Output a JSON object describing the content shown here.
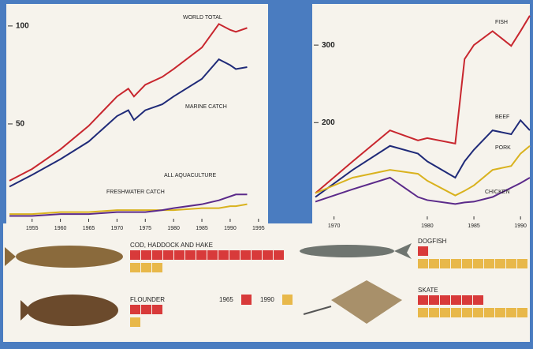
{
  "chart_data": [
    {
      "type": "line",
      "x": [
        1951,
        1955,
        1960,
        1965,
        1970,
        1972,
        1973,
        1975,
        1978,
        1980,
        1985,
        1988,
        1990,
        1991,
        1993
      ],
      "series": [
        {
          "name": "WORLD TOTAL",
          "color": "#c8262e",
          "values": [
            21,
            27,
            37,
            49,
            64,
            68,
            64,
            70,
            74,
            78,
            89,
            101,
            98,
            97,
            99
          ]
        },
        {
          "name": "MARINE CATCH",
          "color": "#1f2a78",
          "values": [
            18,
            24,
            32,
            41,
            54,
            57,
            52,
            57,
            60,
            64,
            73,
            83,
            80,
            78,
            79
          ]
        },
        {
          "name": "ALL AQUACULTURE",
          "color": "#d9b21e",
          "values": [
            4,
            4,
            5,
            5,
            6,
            6,
            6,
            6,
            6,
            6,
            7,
            7,
            8,
            8,
            9
          ]
        },
        {
          "name": "FRESHWATER CATCH",
          "color": "#5b2a8a",
          "values": [
            3,
            3,
            4,
            4,
            5,
            5,
            5,
            5,
            6,
            7,
            9,
            11,
            13,
            14,
            14
          ]
        }
      ],
      "xlim": [
        1951,
        1996
      ],
      "xticks": [
        1955,
        1960,
        1965,
        1970,
        1975,
        1980,
        1985,
        1990,
        1995
      ],
      "ylim": [
        0,
        106
      ],
      "yticks": [
        50,
        100
      ]
    },
    {
      "type": "line",
      "x": [
        1968,
        1972,
        1976,
        1979,
        1980,
        1983,
        1984,
        1985,
        1987,
        1989,
        1990,
        1991
      ],
      "series": [
        {
          "name": "FISH",
          "color": "#c8262e",
          "values": [
            109,
            150,
            190,
            177,
            180,
            173,
            282,
            300,
            318,
            299,
            318,
            338
          ]
        },
        {
          "name": "BEEF",
          "color": "#1f2a78",
          "values": [
            104,
            139,
            170,
            160,
            150,
            129,
            150,
            165,
            190,
            185,
            203,
            190
          ]
        },
        {
          "name": "PORK",
          "color": "#d9b21e",
          "values": [
            109,
            129,
            139,
            134,
            125,
            106,
            112,
            119,
            139,
            144,
            160,
            170
          ]
        },
        {
          "name": "CHICKEN",
          "color": "#5b2a8a",
          "values": [
            98,
            114,
            129,
            104,
            100,
            95,
            97,
            98,
            104,
            116,
            122,
            129
          ]
        }
      ],
      "xlim": [
        1968,
        1991
      ],
      "xticks": [
        1970,
        1980,
        1985,
        1990
      ],
      "ylim": [
        75,
        348
      ],
      "yticks": [
        200,
        300
      ]
    },
    {
      "type": "pictogram",
      "categories": [
        "COD, HADDOCK AND HAKE",
        "FLOUNDER",
        "DOGFISH",
        "SKATE"
      ],
      "series": [
        {
          "name": "1965",
          "color": "#d83a3a",
          "values": [
            14,
            3,
            1,
            6
          ]
        },
        {
          "name": "1990",
          "color": "#e8b84a",
          "values": [
            3,
            1,
            10,
            10
          ]
        }
      ]
    }
  ]
}
